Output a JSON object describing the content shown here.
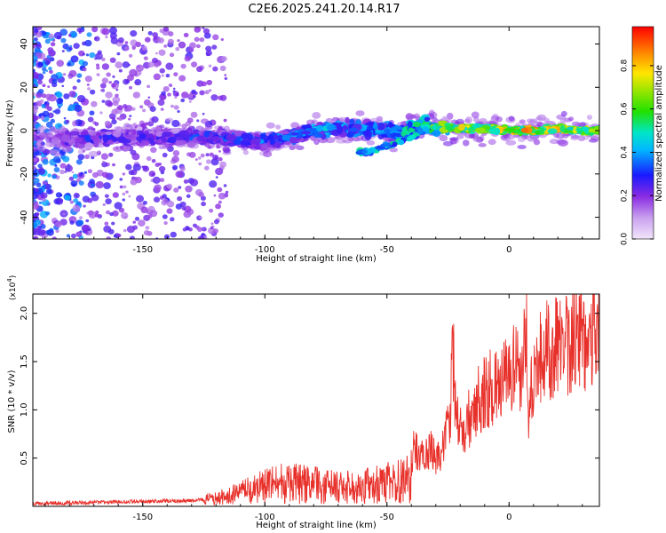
{
  "page": {
    "title": "C2E6.2025.241.20.14.R17"
  },
  "colors": {
    "snr_line": "#e8302a"
  },
  "chart_data": [
    {
      "type": "heatmap",
      "title": "C2E6.2025.241.20.14.R17",
      "xlabel": "Height of straight line (km)",
      "ylabel": "Frequency (Hz)",
      "xlim": [
        -195,
        37
      ],
      "ylim": [
        -50,
        48
      ],
      "x_ticks": [
        -150,
        -100,
        -50,
        0
      ],
      "y_ticks": [
        40,
        20,
        0,
        -20,
        -40
      ],
      "x_tick_labels": [
        "-150",
        "-100",
        "-50",
        "0"
      ],
      "y_tick_labels": [
        "40",
        "20",
        "0",
        "-20",
        "-40"
      ],
      "colorbar": {
        "label": "Normalized spectral amplitude",
        "range": [
          0.0,
          0.98
        ],
        "ticks": [
          0.0,
          0.2,
          0.4,
          0.6,
          0.8
        ],
        "tick_labels": [
          "0.0",
          "0.2",
          "0.4",
          "0.6",
          "0.8"
        ],
        "colormap": "rainbow"
      },
      "ridge": {
        "description": "dominant Doppler band near 0 Hz",
        "x": [
          -180,
          -160,
          -140,
          -120,
          -100,
          -90,
          -80,
          -70,
          -60,
          -50,
          -45,
          -40,
          -35,
          -30,
          -25,
          -20,
          -10,
          0,
          10,
          20,
          30,
          37
        ],
        "y": [
          -4,
          -3,
          -3,
          -3,
          -5,
          -3,
          0,
          1,
          1,
          0,
          -2,
          2,
          3,
          1,
          1,
          1,
          1,
          0,
          0,
          1,
          0,
          0
        ],
        "amplitude": [
          0.3,
          0.3,
          0.3,
          0.35,
          0.4,
          0.42,
          0.45,
          0.45,
          0.45,
          0.45,
          0.5,
          0.55,
          0.6,
          0.65,
          0.8,
          0.75,
          0.85,
          0.85,
          0.85,
          0.8,
          0.75,
          0.7
        ]
      },
      "secondary_branch": {
        "x": [
          -60,
          -55,
          -50,
          -45,
          -40,
          -35
        ],
        "y": [
          -10,
          -9,
          -7,
          -5,
          -3,
          0
        ]
      }
    },
    {
      "type": "line",
      "title": "",
      "xlabel": "Height of straight line (km)",
      "ylabel": "SNR (10 * v/v)",
      "y_multiplier_label": "(x10",
      "y_multiplier_exp": "4",
      "xlim": [
        -195,
        37
      ],
      "ylim": [
        0,
        2.2
      ],
      "x_ticks": [
        -150,
        -100,
        -50,
        0
      ],
      "y_ticks": [
        0.5,
        1.0,
        1.5,
        2.0
      ],
      "x_tick_labels": [
        "-150",
        "-100",
        "-50",
        "0"
      ],
      "y_tick_labels": [
        "0.5",
        "1.0",
        "1.5",
        "2.0"
      ],
      "series": [
        {
          "color": "#e8302a",
          "x": [
            -195,
            -170,
            -150,
            -130,
            -125,
            -120,
            -115,
            -110,
            -105,
            -100,
            -95,
            -90,
            -85,
            -80,
            -75,
            -70,
            -65,
            -60,
            -55,
            -50,
            -45,
            -40,
            -39,
            -37,
            -35,
            -32,
            -30,
            -28,
            -26,
            -24,
            -23,
            -22,
            -20,
            -18,
            -16,
            -15,
            -14,
            -12,
            -10,
            -8,
            -6,
            -4,
            -2,
            0,
            2,
            4,
            6,
            7,
            8,
            9,
            10,
            12,
            14,
            16,
            18,
            20,
            22,
            25,
            28,
            31,
            34,
            37
          ],
          "y": [
            0.03,
            0.04,
            0.05,
            0.06,
            0.07,
            0.08,
            0.11,
            0.14,
            0.17,
            0.21,
            0.23,
            0.24,
            0.23,
            0.22,
            0.21,
            0.19,
            0.2,
            0.21,
            0.22,
            0.24,
            0.27,
            0.31,
            0.62,
            0.55,
            0.5,
            0.6,
            0.48,
            0.56,
            0.72,
            0.9,
            1.7,
            1.0,
            0.8,
            0.75,
            0.95,
            1.05,
            1.08,
            1.15,
            1.18,
            1.22,
            1.25,
            1.2,
            1.28,
            1.35,
            1.4,
            1.42,
            1.5,
            2.05,
            0.8,
            1.15,
            1.45,
            1.5,
            1.55,
            1.6,
            1.62,
            1.66,
            1.7,
            1.72,
            1.76,
            1.8,
            1.83,
            1.86
          ]
        }
      ]
    }
  ]
}
